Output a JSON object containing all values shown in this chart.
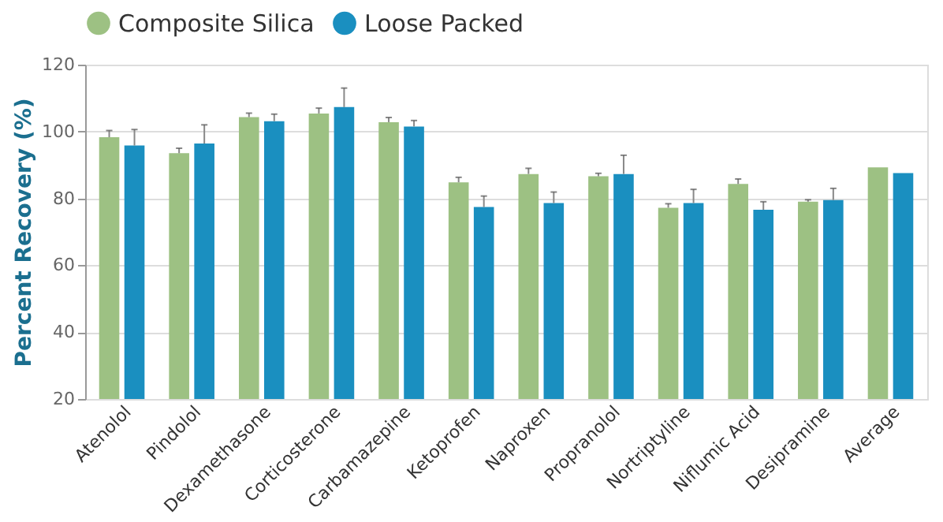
{
  "chart_data": {
    "type": "bar",
    "ylabel": "Percent Recovery (%)",
    "categories": [
      "Atenolol",
      "Pindolol",
      "Dexamethasone",
      "Corticosterone",
      "Carbamazepine",
      "Ketoprofen",
      "Naproxen",
      "Propranolol",
      "Nortriptyline",
      "Niflumic Acid",
      "Desipramine",
      "Average"
    ],
    "series": [
      {
        "name": "Composite Silica",
        "color": "#9dc183",
        "values": [
          98.3,
          93.5,
          104.3,
          105.4,
          102.8,
          84.8,
          87.3,
          86.6,
          77.2,
          84.3,
          79,
          89.3
        ],
        "errors": [
          [
            98.3,
            100.3
          ],
          [
            93.5,
            95
          ],
          [
            104.3,
            105.5
          ],
          [
            105.4,
            107
          ],
          [
            102.8,
            104.2
          ],
          [
            84.8,
            86.3
          ],
          [
            87.3,
            89
          ],
          [
            86.6,
            87.5
          ],
          [
            77.2,
            78.4
          ],
          [
            84.3,
            85.8
          ],
          [
            79,
            79.6
          ],
          null
        ]
      },
      {
        "name": "Loose Packed",
        "color": "#1a8fc0",
        "values": [
          95.8,
          96.4,
          103.1,
          107.3,
          101.5,
          77.4,
          78.6,
          87.3,
          78.6,
          76.6,
          79.5,
          87.6
        ],
        "errors": [
          [
            95.8,
            100.6
          ],
          [
            96.4,
            102
          ],
          [
            103.1,
            105.2
          ],
          [
            107.3,
            113
          ],
          [
            101.5,
            103.3
          ],
          [
            77.4,
            80.7
          ],
          [
            78.6,
            81.9
          ],
          [
            87.3,
            92.9
          ],
          [
            78.6,
            82.7
          ],
          [
            76.6,
            79
          ],
          [
            79.5,
            83
          ],
          null
        ]
      }
    ],
    "ylim": [
      20,
      120
    ],
    "yticks": [
      20,
      40,
      60,
      80,
      100,
      120
    ],
    "grid": "y",
    "legend": "top"
  }
}
